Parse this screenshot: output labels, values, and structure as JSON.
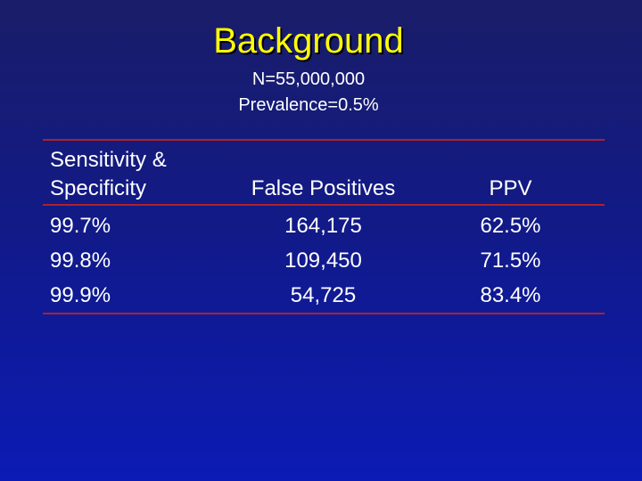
{
  "slide": {
    "title": "Background",
    "subtitle_line1": "N=55,000,000",
    "subtitle_line2": "Prevalence=0.5%",
    "colors": {
      "background_top": "#1a1d68",
      "background_bottom": "#0b1bb4",
      "title": "#ffff00",
      "text": "#ffffff",
      "rule": "#b0202a"
    }
  },
  "table": {
    "headers": {
      "col1_line1": "Sensitivity &",
      "col1_line2": "Specificity",
      "col2": "False Positives",
      "col3": "PPV"
    },
    "rows": [
      {
        "sens_spec": "99.7%",
        "false_positives": "164,175",
        "ppv": "62.5%"
      },
      {
        "sens_spec": "99.8%",
        "false_positives": "109,450",
        "ppv": "71.5%"
      },
      {
        "sens_spec": "99.9%",
        "false_positives": "54,725",
        "ppv": "83.4%"
      }
    ]
  }
}
